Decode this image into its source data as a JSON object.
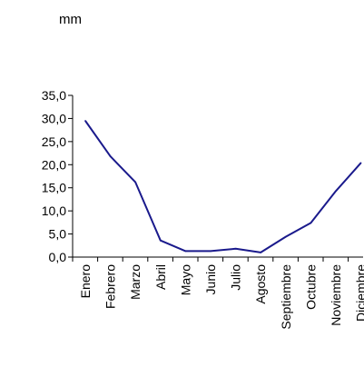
{
  "chart_data": {
    "type": "line",
    "unit_label": "mm",
    "title": "",
    "xlabel": "",
    "ylabel": "",
    "categories": [
      "Enero",
      "Febrero",
      "Marzo",
      "Abril",
      "Mayo",
      "Junio",
      "Julio",
      "Agosto",
      "Septiembre",
      "Octubre",
      "Noviembre",
      "Diciembre"
    ],
    "series": [
      {
        "values": [
          29.5,
          21.8,
          16.2,
          3.6,
          1.3,
          1.3,
          1.8,
          1.0,
          4.4,
          7.4,
          14.3,
          20.4
        ],
        "color": "#1a1a8c"
      }
    ],
    "yticks": [
      "35,0",
      "30,0",
      "25,0",
      "20,0",
      "15,0",
      "10,0",
      "5,0",
      "0,0"
    ],
    "ylim": [
      0,
      35
    ],
    "grid": false,
    "legend": "none"
  }
}
